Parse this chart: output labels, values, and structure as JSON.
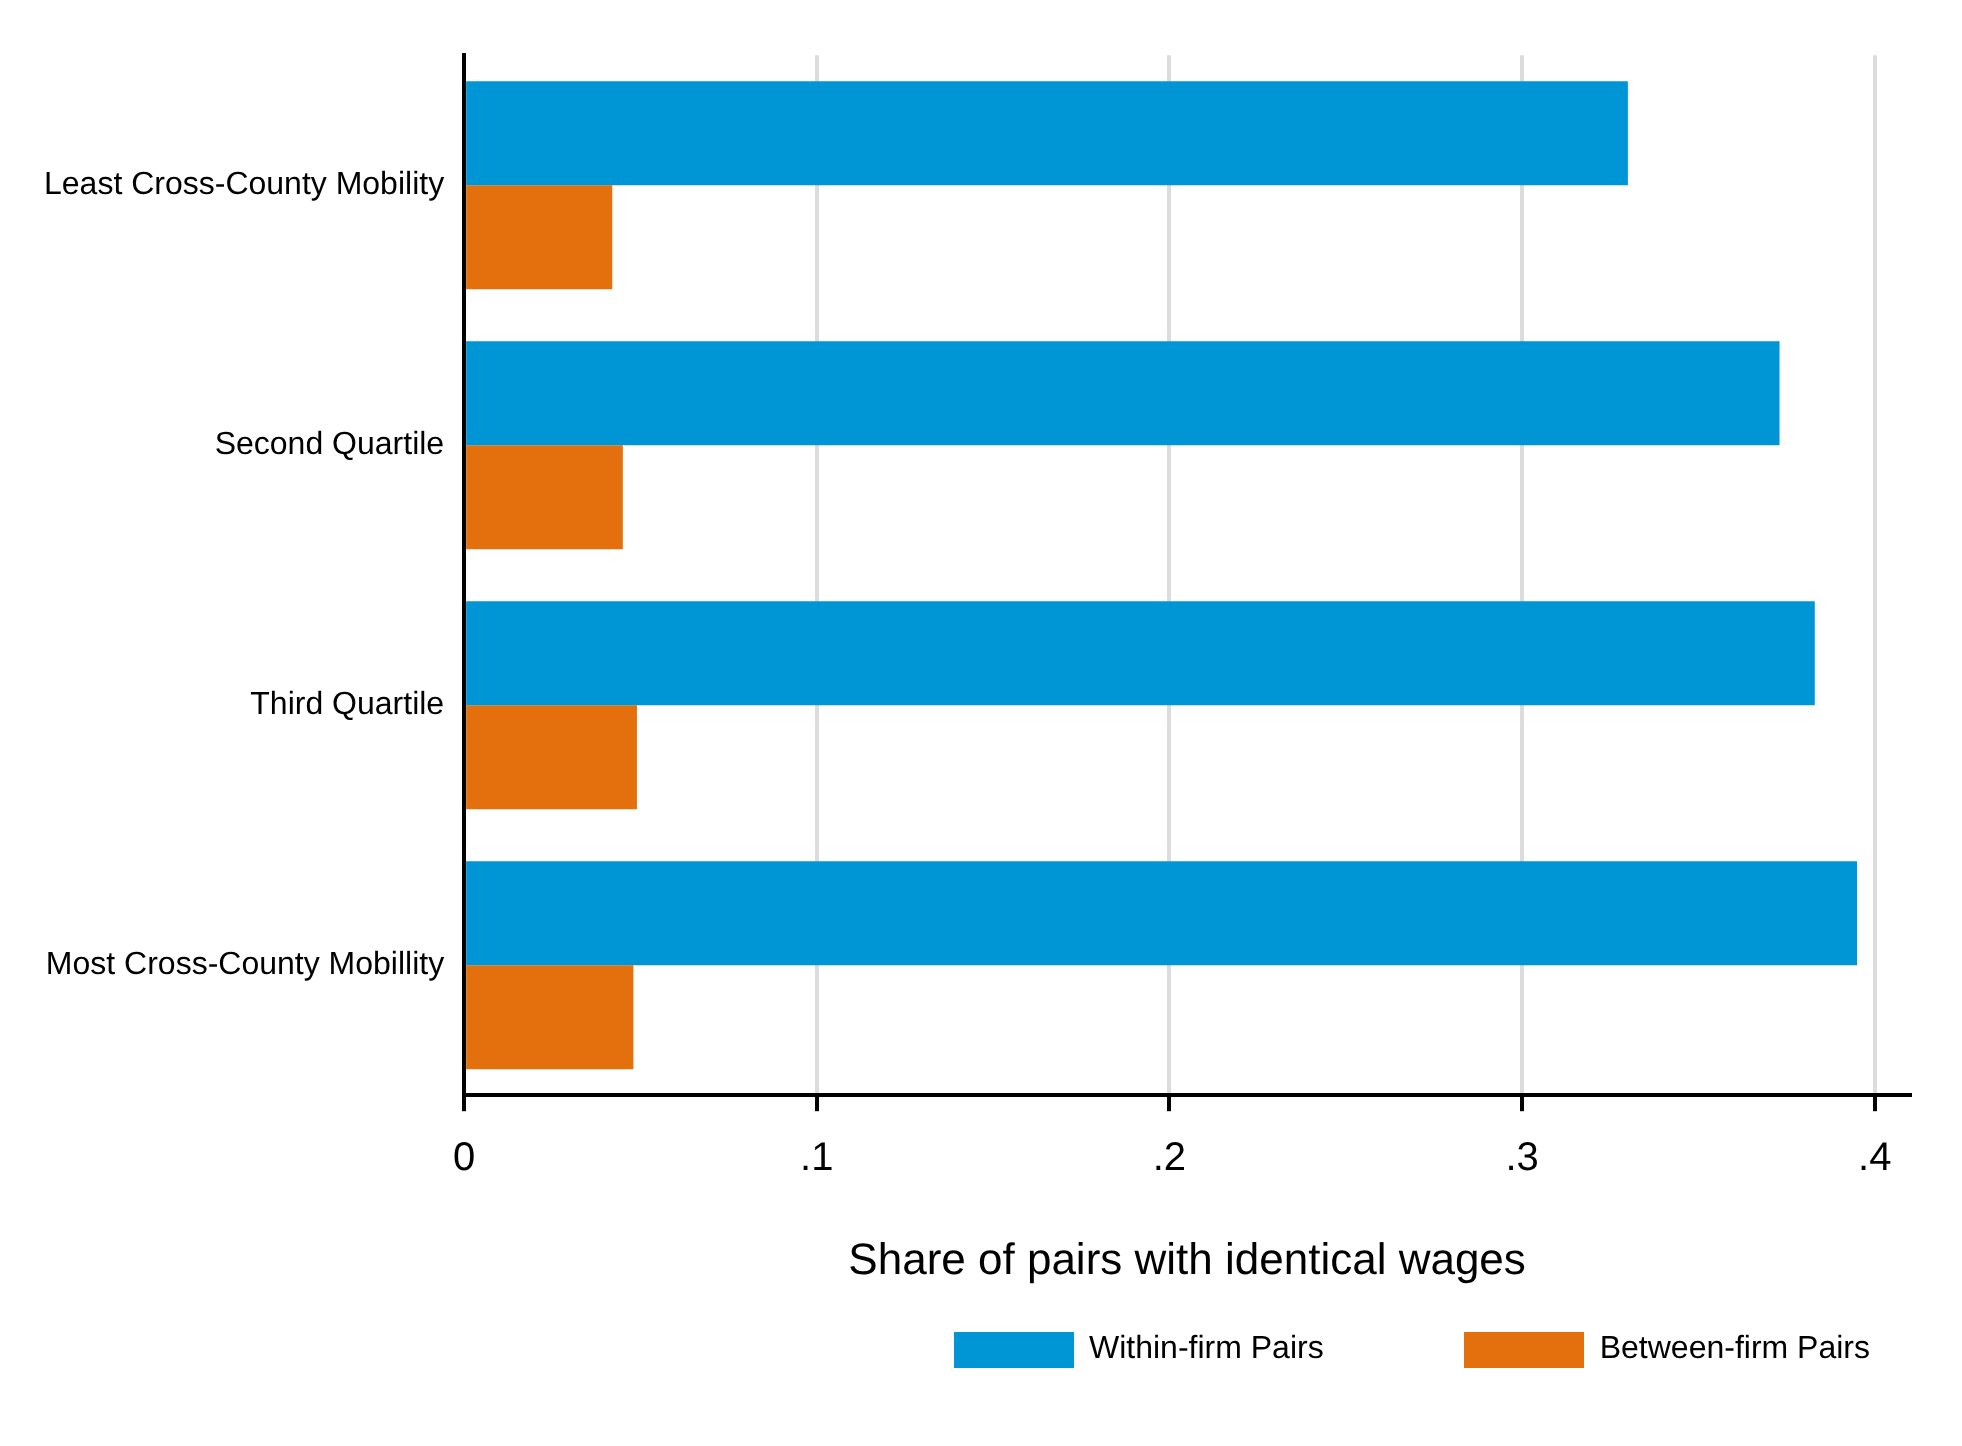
{
  "chart_data": {
    "type": "bar",
    "orientation": "horizontal",
    "categories": [
      "Least Cross-County Mobility",
      "Second Quartile",
      "Third Quartile",
      "Most Cross-County Mobillity"
    ],
    "series": [
      {
        "name": "Within-firm Pairs",
        "color": "#0096d6",
        "values": [
          0.33,
          0.373,
          0.383,
          0.395
        ]
      },
      {
        "name": "Between-firm Pairs",
        "color": "#e3700d",
        "values": [
          0.042,
          0.045,
          0.049,
          0.048
        ]
      }
    ],
    "xlabel": "Share of pairs with identical wages",
    "xlim": [
      0,
      0.41
    ],
    "xticks": [
      0,
      {
        "value": 0.1,
        "label": ".1"
      },
      {
        "value": 0.2,
        "label": ".2"
      },
      {
        "value": 0.3,
        "label": ".3"
      },
      {
        "value": 0.4,
        "label": ".4"
      }
    ],
    "grid": "x",
    "legend": "bottom"
  }
}
